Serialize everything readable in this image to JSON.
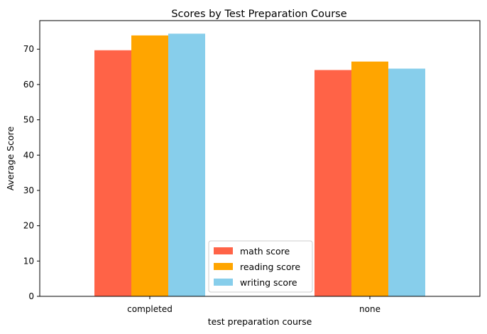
{
  "chart_data": {
    "type": "bar",
    "title": "Scores by Test Preparation Course",
    "xlabel": "test preparation course",
    "ylabel": "Average Score",
    "categories": [
      "completed",
      "none"
    ],
    "series": [
      {
        "name": "math score",
        "color": "#ff6347",
        "values": [
          69.7,
          64.1
        ]
      },
      {
        "name": "reading score",
        "color": "#ffa500",
        "values": [
          73.9,
          66.5
        ]
      },
      {
        "name": "writing score",
        "color": "#87ceeb",
        "values": [
          74.4,
          64.5
        ]
      }
    ],
    "ylim": [
      0,
      78.1
    ],
    "yticks": [
      0,
      10,
      20,
      30,
      40,
      50,
      60,
      70
    ],
    "grid": false,
    "legend_position": "lower-center"
  }
}
